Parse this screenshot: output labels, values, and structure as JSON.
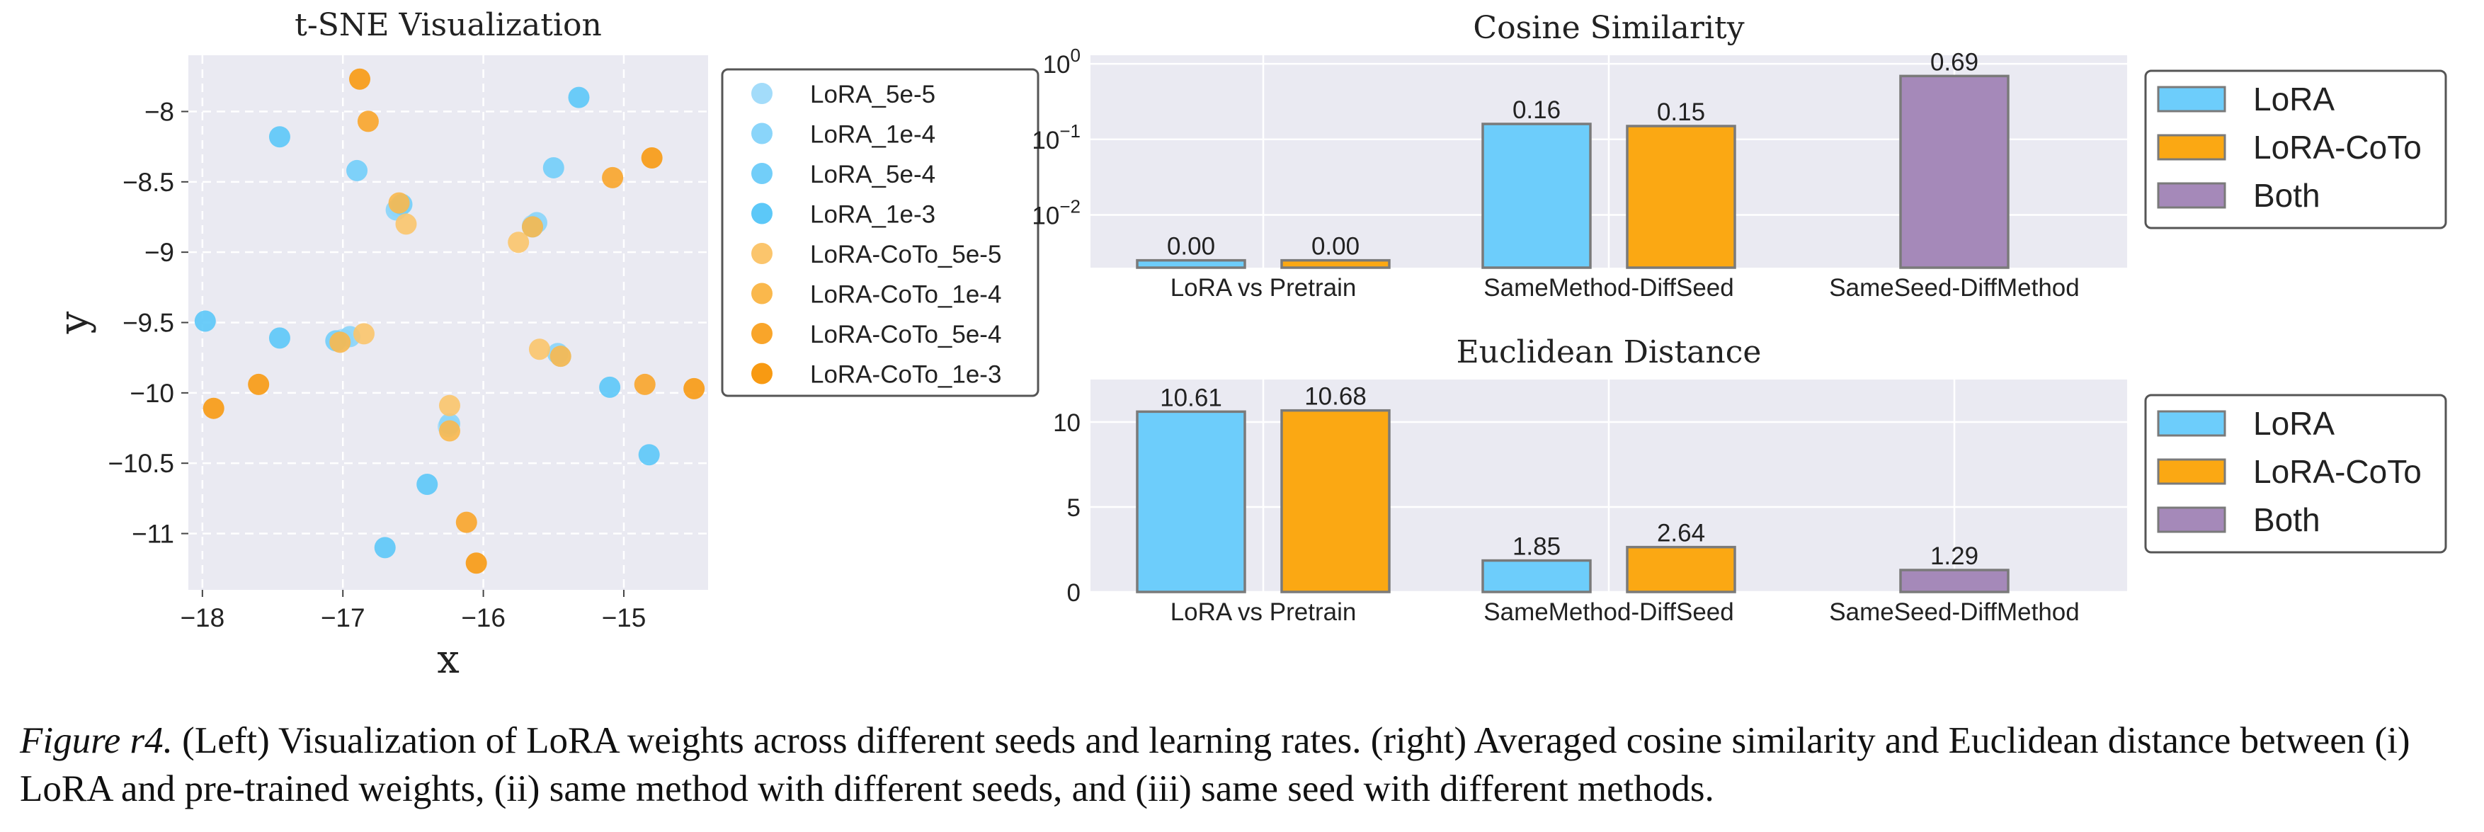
{
  "chart_data": [
    {
      "type": "scatter",
      "title": "t-SNE Visualization",
      "xlabel": "x",
      "ylabel": "y",
      "xlim": [
        -18.1,
        -14.4
      ],
      "ylim": [
        -11.4,
        -7.6
      ],
      "xticks": [
        -18,
        -17,
        -16,
        -15
      ],
      "yticks": [
        -8.0,
        -8.5,
        -9.0,
        -9.5,
        -10.0,
        -10.5,
        -11.0
      ],
      "grid": true,
      "legend_position": "outside-right",
      "series": [
        {
          "name": "LoRA_5e-5",
          "color": "#a3dcfa",
          "points": [
            [
              -17.0,
              -9.62
            ],
            [
              -16.6,
              -8.68
            ],
            [
              -15.65,
              -8.81
            ],
            [
              -15.45,
              -9.74
            ],
            [
              -16.25,
              -10.24
            ]
          ]
        },
        {
          "name": "LoRA_1e-4",
          "color": "#8ad5fa",
          "points": [
            [
              -16.95,
              -9.6
            ],
            [
              -16.62,
              -8.7
            ],
            [
              -15.62,
              -8.79
            ],
            [
              -15.47,
              -9.72
            ],
            [
              -16.24,
              -10.22
            ]
          ]
        },
        {
          "name": "LoRA_5e-4",
          "color": "#72cef9",
          "points": [
            [
              -17.05,
              -9.63
            ],
            [
              -16.9,
              -8.42
            ],
            [
              -15.5,
              -8.4
            ],
            [
              -16.58,
              -8.66
            ],
            [
              -15.65,
              -8.82
            ]
          ]
        },
        {
          "name": "LoRA_1e-3",
          "color": "#5cc8f8",
          "points": [
            [
              -17.98,
              -9.49
            ],
            [
              -17.45,
              -8.18
            ],
            [
              -17.45,
              -9.61
            ],
            [
              -16.4,
              -10.65
            ],
            [
              -16.7,
              -11.1
            ],
            [
              -15.32,
              -7.9
            ],
            [
              -15.1,
              -9.96
            ],
            [
              -14.82,
              -10.44
            ]
          ]
        },
        {
          "name": "LoRA-CoTo_5e-5",
          "color": "#fbc56c",
          "points": [
            [
              -16.85,
              -9.58
            ],
            [
              -16.55,
              -8.8
            ],
            [
              -15.75,
              -8.93
            ],
            [
              -15.6,
              -9.69
            ],
            [
              -16.24,
              -10.09
            ]
          ]
        },
        {
          "name": "LoRA-CoTo_1e-4",
          "color": "#fab84c",
          "points": [
            [
              -16.6,
              -8.65
            ],
            [
              -15.65,
              -8.82
            ],
            [
              -15.45,
              -9.74
            ],
            [
              -16.24,
              -10.27
            ],
            [
              -17.02,
              -9.64
            ]
          ]
        },
        {
          "name": "LoRA-CoTo_5e-4",
          "color": "#f9a52a",
          "points": [
            [
              -16.82,
              -8.07
            ],
            [
              -15.08,
              -8.47
            ],
            [
              -16.12,
              -10.92
            ],
            [
              -14.85,
              -9.94
            ]
          ]
        },
        {
          "name": "LoRA-CoTo_1e-3",
          "color": "#f89a12",
          "points": [
            [
              -16.88,
              -7.77
            ],
            [
              -17.6,
              -9.94
            ],
            [
              -17.92,
              -10.11
            ],
            [
              -16.05,
              -11.21
            ],
            [
              -14.8,
              -8.33
            ],
            [
              -14.5,
              -9.97
            ]
          ]
        }
      ]
    },
    {
      "type": "bar",
      "title": "Cosine Similarity",
      "yscale": "log",
      "ylim": [
        0.002,
        1.3
      ],
      "yticks": [
        {
          "value": 1,
          "base": "10",
          "exp": "0"
        },
        {
          "value": 0.1,
          "base": "10",
          "exp": "−1"
        },
        {
          "value": 0.01,
          "base": "10",
          "exp": "−2"
        }
      ],
      "categories": [
        "LoRA vs Pretrain",
        "SameMethod-DiffSeed",
        "SameSeed-DiffMethod"
      ],
      "legend_position": "outside-right",
      "series": [
        {
          "name": "LoRA",
          "color": "#6dcdfb",
          "values": [
            0.0025,
            0.16,
            null
          ],
          "labels": [
            "0.00",
            "0.16",
            ""
          ]
        },
        {
          "name": "LoRA-CoTo",
          "color": "#fba813",
          "values": [
            0.0025,
            0.15,
            null
          ],
          "labels": [
            "0.00",
            "0.15",
            ""
          ]
        },
        {
          "name": "Both",
          "color": "#a589b9",
          "values": [
            null,
            null,
            0.69
          ],
          "labels": [
            "",
            "",
            "0.69"
          ]
        }
      ]
    },
    {
      "type": "bar",
      "title": "Euclidean Distance",
      "ylim": [
        0,
        12.5
      ],
      "yticks": [
        0,
        5,
        10
      ],
      "categories": [
        "LoRA vs Pretrain",
        "SameMethod-DiffSeed",
        "SameSeed-DiffMethod"
      ],
      "legend_position": "outside-right",
      "series": [
        {
          "name": "LoRA",
          "color": "#6dcdfb",
          "values": [
            10.61,
            1.85,
            null
          ],
          "labels": [
            "10.61",
            "1.85",
            ""
          ]
        },
        {
          "name": "LoRA-CoTo",
          "color": "#fba813",
          "values": [
            10.68,
            2.64,
            null
          ],
          "labels": [
            "10.68",
            "2.64",
            ""
          ]
        },
        {
          "name": "Both",
          "color": "#a589b9",
          "values": [
            null,
            null,
            1.29
          ],
          "labels": [
            "",
            "",
            "1.29"
          ]
        }
      ]
    }
  ],
  "caption": {
    "label": "Figure r4.",
    "text": " (Left) Visualization of LoRA weights across different seeds and learning rates. (right) Averaged cosine similarity and Euclidean distance between (i) LoRA and pre-trained weights, (ii) same method with different seeds, and (iii) same seed with different methods."
  }
}
